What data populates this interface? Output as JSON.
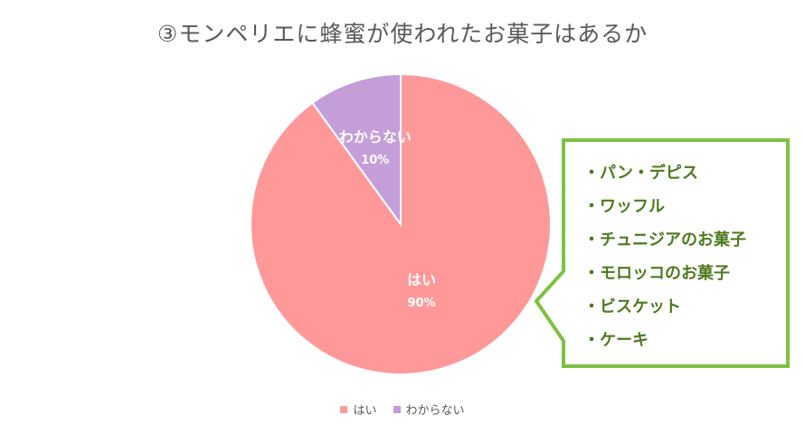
{
  "title": "③モンペリエに蜂蜜が使われたお菓子はあるか",
  "chart_data": {
    "type": "pie",
    "categories": [
      "はい",
      "わからない"
    ],
    "values": [
      90,
      10
    ],
    "value_labels": [
      "90%",
      "10%"
    ],
    "colors": [
      "#ff9999",
      "#c49ed8"
    ],
    "legend_placement": "bottom"
  },
  "callout": {
    "border_color": "#7dc142",
    "text_color": "#4d7a1e",
    "items": [
      "・パン・デピス",
      "・ワッフル",
      "・チュニジアのお菓子",
      "・モロッコのお菓子",
      "・ビスケット",
      "・ケーキ"
    ]
  },
  "legend": {
    "items": [
      {
        "label": "はい",
        "color": "#ff9999"
      },
      {
        "label": "わからない",
        "color": "#c49ed8"
      }
    ]
  }
}
